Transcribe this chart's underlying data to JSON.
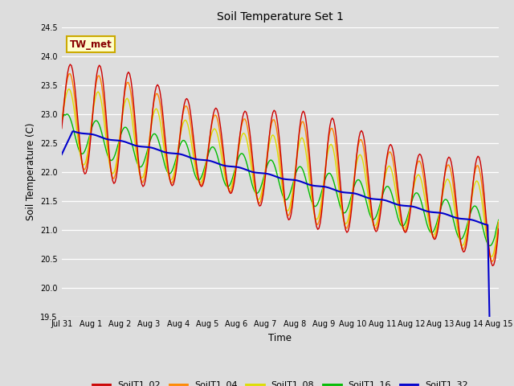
{
  "title": "Soil Temperature Set 1",
  "xlabel": "Time",
  "ylabel": "Soil Temperature (C)",
  "ylim": [
    19.5,
    24.5
  ],
  "yticks": [
    19.5,
    20.0,
    20.5,
    21.0,
    21.5,
    22.0,
    22.5,
    23.0,
    23.5,
    24.0,
    24.5
  ],
  "bg_color": "#dddddd",
  "annotation_text": "TW_met",
  "annotation_bg": "#ffffcc",
  "annotation_border": "#ccaa00",
  "annotation_text_color": "#880000",
  "series_colors": {
    "SoilT1_02": "#cc0000",
    "SoilT1_04": "#ff8800",
    "SoilT1_08": "#dddd00",
    "SoilT1_16": "#00bb00",
    "SoilT1_32": "#0000cc"
  },
  "line_width": 1.0,
  "x_tick_labels": [
    "Jul 31",
    "Aug 1",
    "Aug 2",
    "Aug 3",
    "Aug 4",
    "Aug 5",
    "Aug 6",
    "Aug 7",
    "Aug 8",
    "Aug 9",
    "Aug 10",
    "Aug 11",
    "Aug 12",
    "Aug 13",
    "Aug 14",
    "Aug 15"
  ],
  "n_hours": 360,
  "total_hours": 360
}
